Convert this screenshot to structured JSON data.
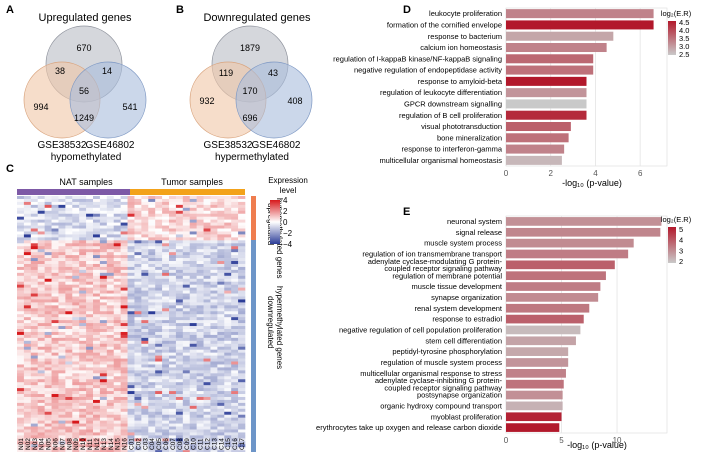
{
  "panel_labels": {
    "a": "A",
    "b": "B",
    "c": "C",
    "d": "D",
    "e": "E"
  },
  "colors": {
    "venn_top": "#b9bcc4",
    "venn_left": "#f0c6a6",
    "venn_right": "#a9bddc",
    "nat_bar": "#7d59a6",
    "tumor_bar": "#f3a21a",
    "row_up": "#ef7d4f",
    "row_down": "#6d95c8",
    "heat_high": "#d7191c",
    "heat_mid": "#ffffff",
    "heat_low": "#2c3d98",
    "bar_low": "#c9c9c9",
    "bar_high": "#b2182b"
  },
  "chart_data": [
    {
      "id": "A",
      "type": "venn",
      "title": "Upregulated genes",
      "sets": [
        "",
        "GSE38532",
        "GSE46802"
      ],
      "caption": "hypomethylated",
      "regions": {
        "top_only": "670",
        "left_only": "994",
        "right_only": "541",
        "top_left": "38",
        "top_right": "14",
        "left_right": "1249",
        "all": "56"
      }
    },
    {
      "id": "B",
      "type": "venn",
      "title": "Downregulated genes",
      "sets": [
        "",
        "GSE38532",
        "GSE46802"
      ],
      "caption": "hypermethylated",
      "regions": {
        "top_only": "1879",
        "left_only": "932",
        "right_only": "408",
        "top_left": "119",
        "top_right": "43",
        "left_right": "696",
        "all": "170"
      }
    },
    {
      "id": "C",
      "type": "heatmap",
      "group_labels": [
        "NAT samples",
        "Tumor samples"
      ],
      "columns": [
        "N01",
        "N02",
        "N03",
        "N04",
        "N05",
        "N06",
        "N07",
        "N08",
        "N09",
        "N10",
        "N11",
        "N12",
        "N13",
        "N14",
        "N15",
        "N16",
        "C01",
        "C02",
        "C03",
        "C04",
        "C05",
        "C06",
        "C07",
        "C08",
        "C09",
        "C10",
        "C11",
        "C12",
        "C13",
        "C14",
        "C15",
        "C16",
        "C17"
      ],
      "row_groups": [
        {
          "label1": "upregulated",
          "label2": "hypomethylated genes"
        },
        {
          "label1": "downregulated",
          "label2": "hypermethylated genes"
        }
      ],
      "legend_title": [
        "Expression",
        "level"
      ],
      "legend_ticks": [
        4,
        2,
        0,
        -2,
        -4
      ],
      "legend_tick_labels": [
        "4",
        "2",
        "0",
        "−2",
        "−4"
      ],
      "value_range": [
        -4,
        4
      ]
    },
    {
      "id": "D",
      "type": "bar",
      "orientation": "horizontal",
      "xlabel": "-log₁₀ (p-value)",
      "xlim": [
        0,
        7.2
      ],
      "xticks": [
        0,
        2,
        4,
        6
      ],
      "legend_title": "log₂(E.R)",
      "legend_ticks": [
        "4.5",
        "4.0",
        "3.5",
        "3.0",
        "2.5"
      ],
      "color_range": [
        2.5,
        4.5
      ],
      "categories": [
        "leukocyte proliferation",
        "formation of the cornified envelope",
        "response to bacterium",
        "calcium ion homeostasis",
        "regulation of I-kappaB kinase/NF-kappaB signaling",
        "negative regulation of endopeptidase activity",
        "response to amyloid-beta",
        "regulation of leukocyte differentiation",
        "GPCR downstream signalling",
        "regulation of B cell proliferation",
        "visual phototransduction",
        "bone mineralization",
        "response to interferon-gamma",
        "multicellular organismal homeostasis"
      ],
      "values": [
        6.6,
        6.6,
        4.8,
        4.5,
        3.9,
        3.9,
        3.6,
        3.6,
        3.6,
        3.6,
        2.9,
        2.8,
        2.6,
        2.5
      ],
      "er": [
        3.3,
        4.5,
        2.9,
        3.3,
        3.6,
        3.5,
        4.5,
        3.1,
        2.5,
        4.3,
        3.7,
        3.5,
        3.3,
        2.7
      ]
    },
    {
      "id": "E",
      "type": "bar",
      "orientation": "horizontal",
      "xlabel": "-log₁₀ (p-value)",
      "xlim": [
        0,
        14.5
      ],
      "xticks": [
        0,
        5,
        10
      ],
      "legend_title": "log₂(E.R)",
      "legend_ticks": [
        "5",
        "4",
        "3",
        "2"
      ],
      "color_range": [
        1.8,
        5.5
      ],
      "categories": [
        "neuronal system",
        "signal release",
        "muscle system process",
        "regulation of ion transmembrane transport",
        [
          "adenylate cyclase-modulating G protein-",
          "coupled receptor signaling pathway"
        ],
        "regulation of membrane potential",
        "muscle tissue development",
        "synapse organization",
        "renal system development",
        "response to estradiol",
        "negative regulation of cell population proliferation",
        "stem cell differentiation",
        "peptidyl-tyrosine phosphorylation",
        "regulation of muscle system process",
        "multicellular organismal response to stress",
        [
          "adenylate cyclase-inhibiting G protein-",
          "coupled receptor signaling pathway"
        ],
        "postsynapse organization",
        "organic hydroxy compound transport",
        "myoblast proliferation",
        "erythrocytes take up oxygen and release carbon dioxide"
      ],
      "values": [
        14.0,
        13.9,
        11.5,
        11.0,
        9.8,
        9.0,
        8.5,
        8.3,
        7.5,
        7.0,
        6.7,
        6.3,
        5.6,
        5.6,
        5.4,
        5.2,
        5.1,
        5.1,
        5.0,
        4.8
      ],
      "er": [
        3.0,
        3.2,
        3.1,
        3.4,
        4.0,
        3.6,
        3.4,
        3.1,
        3.5,
        4.0,
        2.1,
        2.6,
        2.5,
        2.9,
        3.3,
        3.6,
        3.0,
        2.3,
        5.3,
        5.5
      ]
    }
  ]
}
